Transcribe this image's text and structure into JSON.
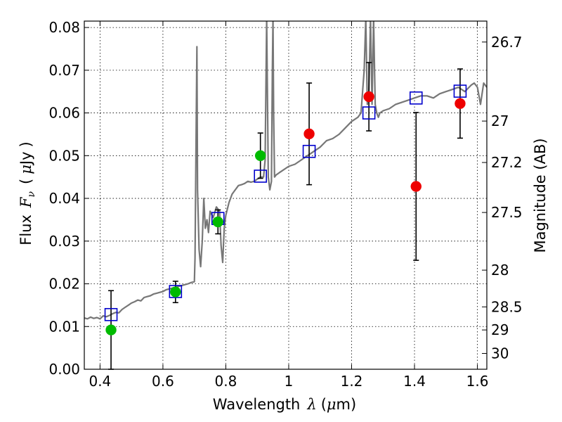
{
  "chart_data": {
    "type": "scatter",
    "xlim": [
      0.35,
      1.63
    ],
    "ylim": [
      0.0,
      0.0815
    ],
    "grid": true,
    "grid_style": "dotted",
    "xlabel": {
      "text": "Wavelength",
      "symbol": "λ",
      "unit_open": "(",
      "unit_mu": "μ",
      "unit_rest": "m)"
    },
    "ylabel": {
      "text": "Flux",
      "symbol": "F",
      "subscript": "ν",
      "unit_open": "(",
      "unit_mu": "μ",
      "unit_rest": "Jy",
      "unit_close": ")"
    },
    "y2label": "Magnitude (AB)",
    "xticks": [
      {
        "value": 0.4,
        "label": "0.4"
      },
      {
        "value": 0.6,
        "label": "0.6"
      },
      {
        "value": 0.8,
        "label": "0.8"
      },
      {
        "value": 1.0,
        "label": "1"
      },
      {
        "value": 1.2,
        "label": "1.2"
      },
      {
        "value": 1.4,
        "label": "1.4"
      },
      {
        "value": 1.6,
        "label": "1.6"
      }
    ],
    "yticks": [
      {
        "value": 0.0,
        "label": "0.00"
      },
      {
        "value": 0.01,
        "label": "0.01"
      },
      {
        "value": 0.02,
        "label": "0.02"
      },
      {
        "value": 0.03,
        "label": "0.03"
      },
      {
        "value": 0.04,
        "label": "0.04"
      },
      {
        "value": 0.05,
        "label": "0.05"
      },
      {
        "value": 0.06,
        "label": "0.06"
      },
      {
        "value": 0.07,
        "label": "0.07"
      },
      {
        "value": 0.08,
        "label": "0.08"
      }
    ],
    "y2ticks": [
      {
        "label": "26.7",
        "flux": 0.0766
      },
      {
        "label": "27",
        "flux": 0.0581
      },
      {
        "label": "27.2",
        "flux": 0.0484
      },
      {
        "label": "27.5",
        "flux": 0.0367
      },
      {
        "label": "28",
        "flux": 0.0232
      },
      {
        "label": "28.5",
        "flux": 0.0146
      },
      {
        "label": "29",
        "flux": 0.0092
      },
      {
        "label": "30",
        "flux": 0.0037
      }
    ],
    "model_spectrum": {
      "color": "#777777",
      "x": [
        0.35,
        0.36,
        0.37,
        0.38,
        0.39,
        0.4,
        0.41,
        0.42,
        0.43,
        0.44,
        0.45,
        0.46,
        0.47,
        0.48,
        0.49,
        0.5,
        0.51,
        0.52,
        0.53,
        0.54,
        0.55,
        0.56,
        0.57,
        0.58,
        0.59,
        0.6,
        0.61,
        0.62,
        0.63,
        0.64,
        0.65,
        0.66,
        0.67,
        0.68,
        0.69,
        0.7,
        0.702,
        0.705,
        0.708,
        0.71,
        0.715,
        0.72,
        0.725,
        0.73,
        0.735,
        0.74,
        0.745,
        0.75,
        0.76,
        0.77,
        0.78,
        0.785,
        0.79,
        0.795,
        0.8,
        0.81,
        0.82,
        0.83,
        0.84,
        0.85,
        0.86,
        0.87,
        0.88,
        0.89,
        0.9,
        0.91,
        0.92,
        0.925,
        0.93,
        0.935,
        0.94,
        0.945,
        0.948,
        0.95,
        0.952,
        0.955,
        0.96,
        0.97,
        0.98,
        0.99,
        1.0,
        1.02,
        1.04,
        1.06,
        1.08,
        1.1,
        1.12,
        1.14,
        1.16,
        1.18,
        1.2,
        1.22,
        1.23,
        1.24,
        1.245,
        1.25,
        1.255,
        1.26,
        1.265,
        1.27,
        1.275,
        1.28,
        1.285,
        1.29,
        1.3,
        1.32,
        1.34,
        1.36,
        1.38,
        1.4,
        1.42,
        1.44,
        1.46,
        1.48,
        1.5,
        1.52,
        1.54,
        1.56,
        1.58,
        1.59,
        1.6,
        1.61,
        1.62,
        1.63
      ],
      "y": [
        0.012,
        0.0118,
        0.0122,
        0.0119,
        0.0121,
        0.0118,
        0.0125,
        0.0123,
        0.0126,
        0.013,
        0.0133,
        0.0132,
        0.014,
        0.0145,
        0.015,
        0.0155,
        0.0158,
        0.0162,
        0.016,
        0.0168,
        0.017,
        0.0172,
        0.0176,
        0.0178,
        0.018,
        0.0182,
        0.0186,
        0.0188,
        0.019,
        0.0192,
        0.0194,
        0.0196,
        0.0198,
        0.02,
        0.0203,
        0.0205,
        0.026,
        0.05,
        0.0755,
        0.042,
        0.028,
        0.024,
        0.03,
        0.04,
        0.033,
        0.035,
        0.032,
        0.037,
        0.0355,
        0.038,
        0.037,
        0.029,
        0.025,
        0.033,
        0.036,
        0.039,
        0.041,
        0.042,
        0.043,
        0.0432,
        0.0435,
        0.044,
        0.0438,
        0.044,
        0.0445,
        0.045,
        0.045,
        0.049,
        0.082,
        0.045,
        0.042,
        0.044,
        0.07,
        0.082,
        0.06,
        0.045,
        0.0455,
        0.046,
        0.0465,
        0.047,
        0.0475,
        0.048,
        0.049,
        0.05,
        0.051,
        0.052,
        0.0535,
        0.054,
        0.055,
        0.0565,
        0.058,
        0.059,
        0.06,
        0.07,
        0.082,
        0.062,
        0.065,
        0.082,
        0.062,
        0.082,
        0.062,
        0.06,
        0.059,
        0.06,
        0.0605,
        0.061,
        0.062,
        0.0625,
        0.063,
        0.0635,
        0.064,
        0.064,
        0.0635,
        0.0645,
        0.065,
        0.0655,
        0.066,
        0.065,
        0.0665,
        0.067,
        0.066,
        0.062,
        0.067,
        0.066
      ]
    },
    "model_photometry": {
      "color": "#0000cc",
      "x": [
        0.435,
        0.64,
        0.775,
        0.91,
        1.065,
        1.255,
        1.405,
        1.545
      ],
      "y": [
        0.0128,
        0.0182,
        0.0353,
        0.0452,
        0.051,
        0.06,
        0.0635,
        0.0651
      ]
    },
    "observed_optical": {
      "color": "#00bb00",
      "x": [
        0.435,
        0.64,
        0.775,
        0.91
      ],
      "y": [
        0.0092,
        0.0181,
        0.0345,
        0.05
      ],
      "err": [
        0.0092,
        0.0025,
        0.0028,
        0.0053
      ]
    },
    "observed_nir": {
      "color": "#ee0000",
      "x": [
        1.065,
        1.255,
        1.405,
        1.545
      ],
      "y": [
        0.0551,
        0.0638,
        0.0428,
        0.0622
      ],
      "err": [
        0.0119,
        0.008,
        0.0173,
        0.0081
      ]
    }
  }
}
